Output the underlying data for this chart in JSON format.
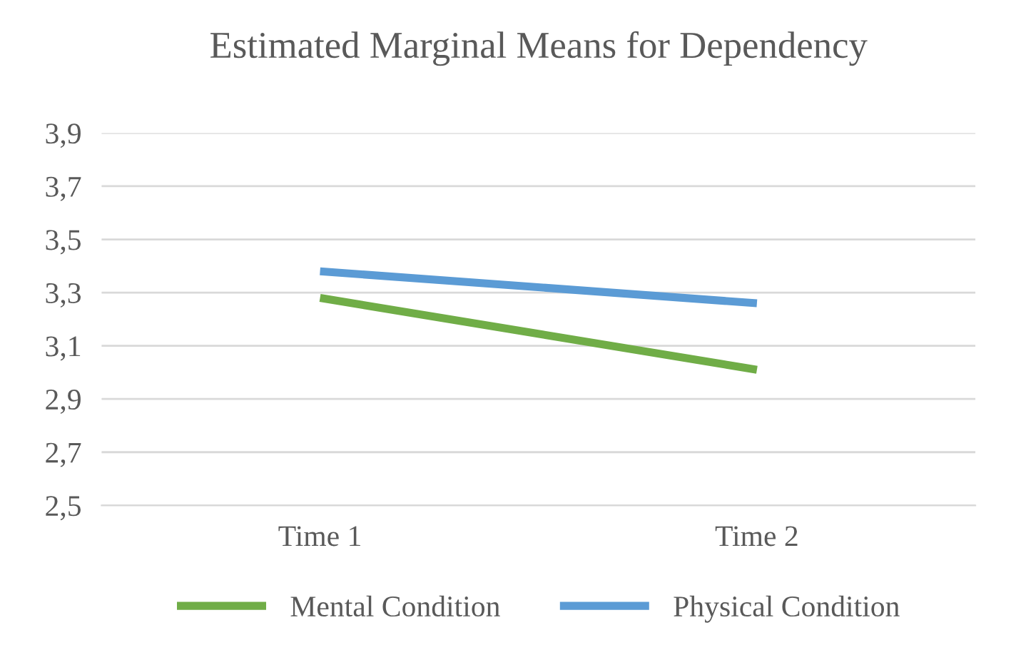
{
  "chart_data": {
    "type": "line",
    "title": "Estimated Marginal Means for Dependency",
    "categories": [
      "Time 1",
      "Time 2"
    ],
    "series": [
      {
        "name": "Mental Condition",
        "color": "#70ad47",
        "values": [
          3.28,
          3.01
        ]
      },
      {
        "name": "Physical Condition",
        "color": "#5b9bd5",
        "values": [
          3.38,
          3.26
        ]
      }
    ],
    "ylim": [
      2.5,
      3.9
    ],
    "yticks": [
      {
        "value": 2.5,
        "label": "2,5"
      },
      {
        "value": 2.7,
        "label": "2,7"
      },
      {
        "value": 2.9,
        "label": "2,9"
      },
      {
        "value": 3.1,
        "label": "3,1"
      },
      {
        "value": 3.3,
        "label": "3,3"
      },
      {
        "value": 3.5,
        "label": "3,5"
      },
      {
        "value": 3.7,
        "label": "3,7"
      },
      {
        "value": 3.9,
        "label": "3,9"
      }
    ],
    "grid": "y",
    "legend": "bottom",
    "marker": "none",
    "line_style": "solid"
  }
}
